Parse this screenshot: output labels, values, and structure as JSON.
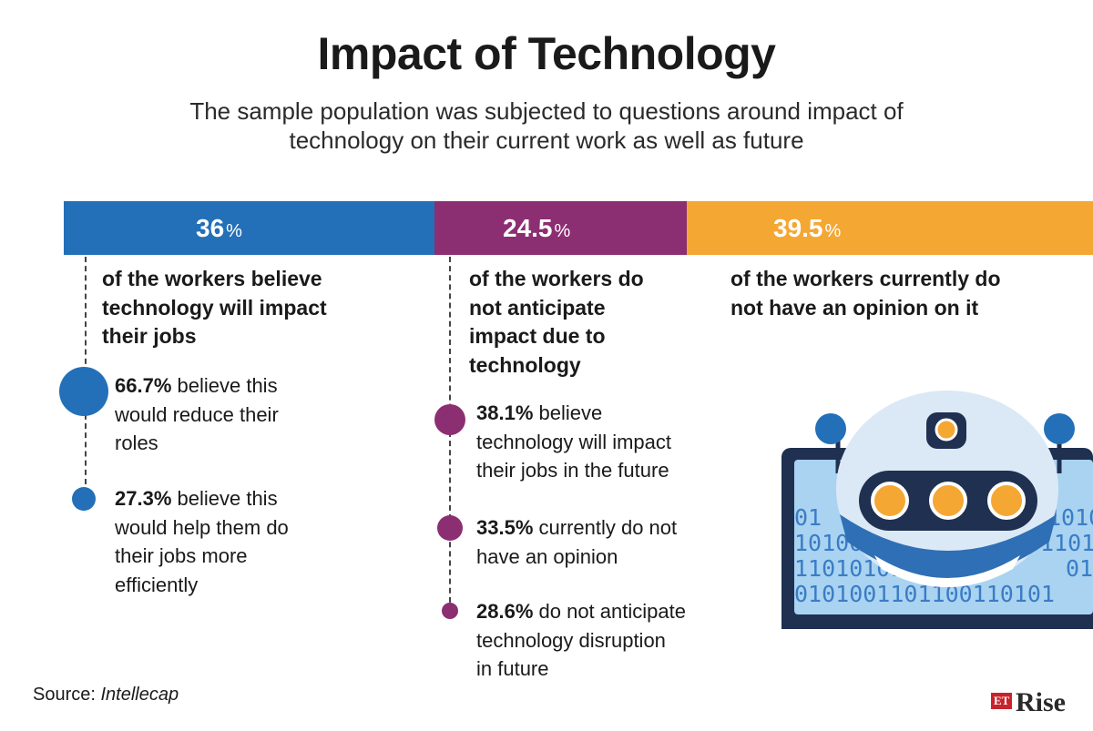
{
  "title": "Impact of Technology",
  "subtitle": "The sample population was subjected to questions around impact of technology on their current work as well as future",
  "colors": {
    "blue": "#2370b8",
    "purple": "#8c2e72",
    "orange": "#f5a733",
    "dark": "#1a1a1a"
  },
  "chart_data": {
    "type": "bar",
    "orientation": "horizontal-stacked",
    "title": "Impact of Technology",
    "unit": "%",
    "segments": [
      {
        "name": "Believe technology will impact their jobs",
        "value": 36,
        "label": "36",
        "color": "#2370b8"
      },
      {
        "name": "Do not anticipate impact",
        "value": 24.5,
        "label": "24.5",
        "color": "#8c2e72"
      },
      {
        "name": "No opinion",
        "value": 39.5,
        "label": "39.5",
        "color": "#f5a733"
      }
    ],
    "breakdowns": [
      {
        "parent": "36",
        "items": [
          {
            "pct": "66.7%",
            "value": 66.7
          },
          {
            "pct": "27.3%",
            "value": 27.3
          }
        ]
      },
      {
        "parent": "24.5",
        "items": [
          {
            "pct": "38.1%",
            "value": 38.1
          },
          {
            "pct": "33.5%",
            "value": 33.5
          },
          {
            "pct": "28.6%",
            "value": 28.6
          }
        ]
      }
    ]
  },
  "percent_sign": "%",
  "columns": [
    {
      "head": [
        "of the workers believe",
        "technology will impact",
        "their jobs"
      ],
      "items": [
        {
          "pct": "66.7%",
          "lines": [
            " believe this",
            "would reduce their",
            "roles"
          ]
        },
        {
          "pct": "27.3%",
          "lines": [
            " believe this",
            "would help them do",
            "their jobs more",
            "efficiently"
          ]
        }
      ]
    },
    {
      "head": [
        "of the workers do",
        "not anticipate",
        "impact due to",
        "technology"
      ],
      "items": [
        {
          "pct": "38.1%",
          "lines": [
            " believe",
            "technology will impact",
            "their jobs in the future"
          ]
        },
        {
          "pct": "33.5%",
          "lines": [
            " currently do not",
            "have an opinion"
          ]
        },
        {
          "pct": "28.6%",
          "lines": [
            " do not anticipate",
            "technology disruption",
            "in future"
          ]
        }
      ]
    },
    {
      "head": [
        "of the workers currently do",
        "not have an opinion on it"
      ],
      "items": []
    }
  ],
  "robot": {
    "binary_lines": [
      "01",
      "10100",
      "11010101",
      "0101001101100110101",
      "1010",
      "1101100",
      "01"
    ]
  },
  "source": {
    "label": "Source: ",
    "name": "Intellecap"
  },
  "logo": {
    "et": "ET",
    "rise": "Rise"
  }
}
